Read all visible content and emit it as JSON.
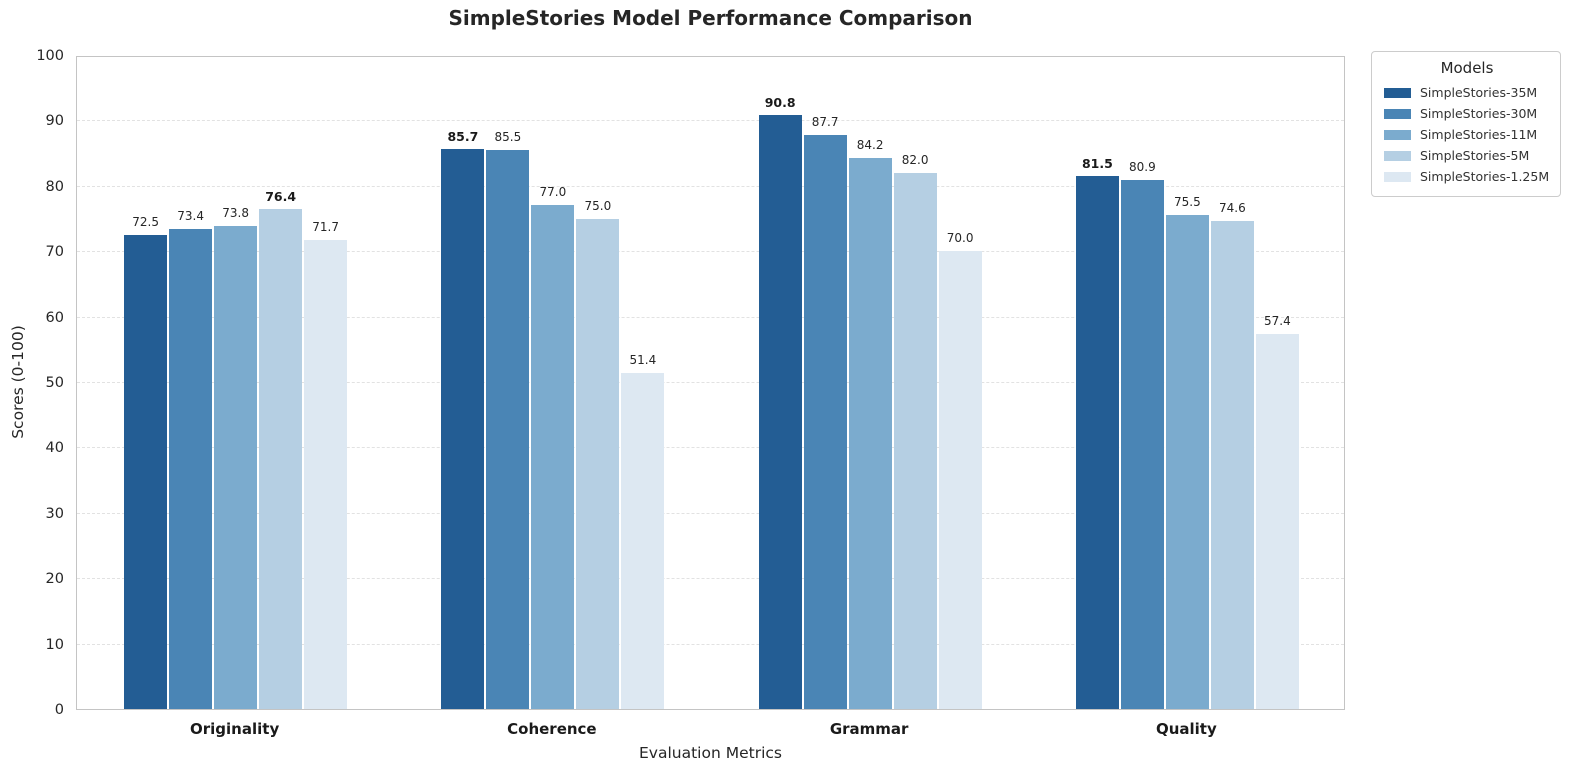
{
  "chart_data": {
    "type": "bar",
    "title": "SimpleStories Model Performance Comparison",
    "xlabel": "Evaluation Metrics",
    "ylabel": "Scores (0-100)",
    "ylim": [
      0,
      100
    ],
    "yticks": [
      0,
      10,
      20,
      30,
      40,
      50,
      60,
      70,
      80,
      90,
      100
    ],
    "grid": "horizontal-dashed",
    "categories": [
      "Originality",
      "Coherence",
      "Grammar",
      "Quality"
    ],
    "series": [
      {
        "name": "SimpleStories-35M",
        "color": "#235d94",
        "values": [
          72.5,
          85.7,
          90.8,
          81.5
        ]
      },
      {
        "name": "SimpleStories-30M",
        "color": "#4a85b5",
        "values": [
          73.4,
          85.5,
          87.7,
          80.9
        ]
      },
      {
        "name": "SimpleStories-11M",
        "color": "#7babce",
        "values": [
          73.8,
          77.0,
          84.2,
          75.5
        ]
      },
      {
        "name": "SimpleStories-5M",
        "color": "#b5cfe3",
        "values": [
          76.4,
          75.0,
          82.0,
          74.6
        ]
      },
      {
        "name": "SimpleStories-1.25M",
        "color": "#dde8f2",
        "values": [
          71.7,
          51.4,
          70.0,
          57.4
        ]
      }
    ],
    "value_labels_decimals": 1,
    "bold_max_per_category": true,
    "legend_title": "Models",
    "legend_position": "outside-upper-right"
  }
}
